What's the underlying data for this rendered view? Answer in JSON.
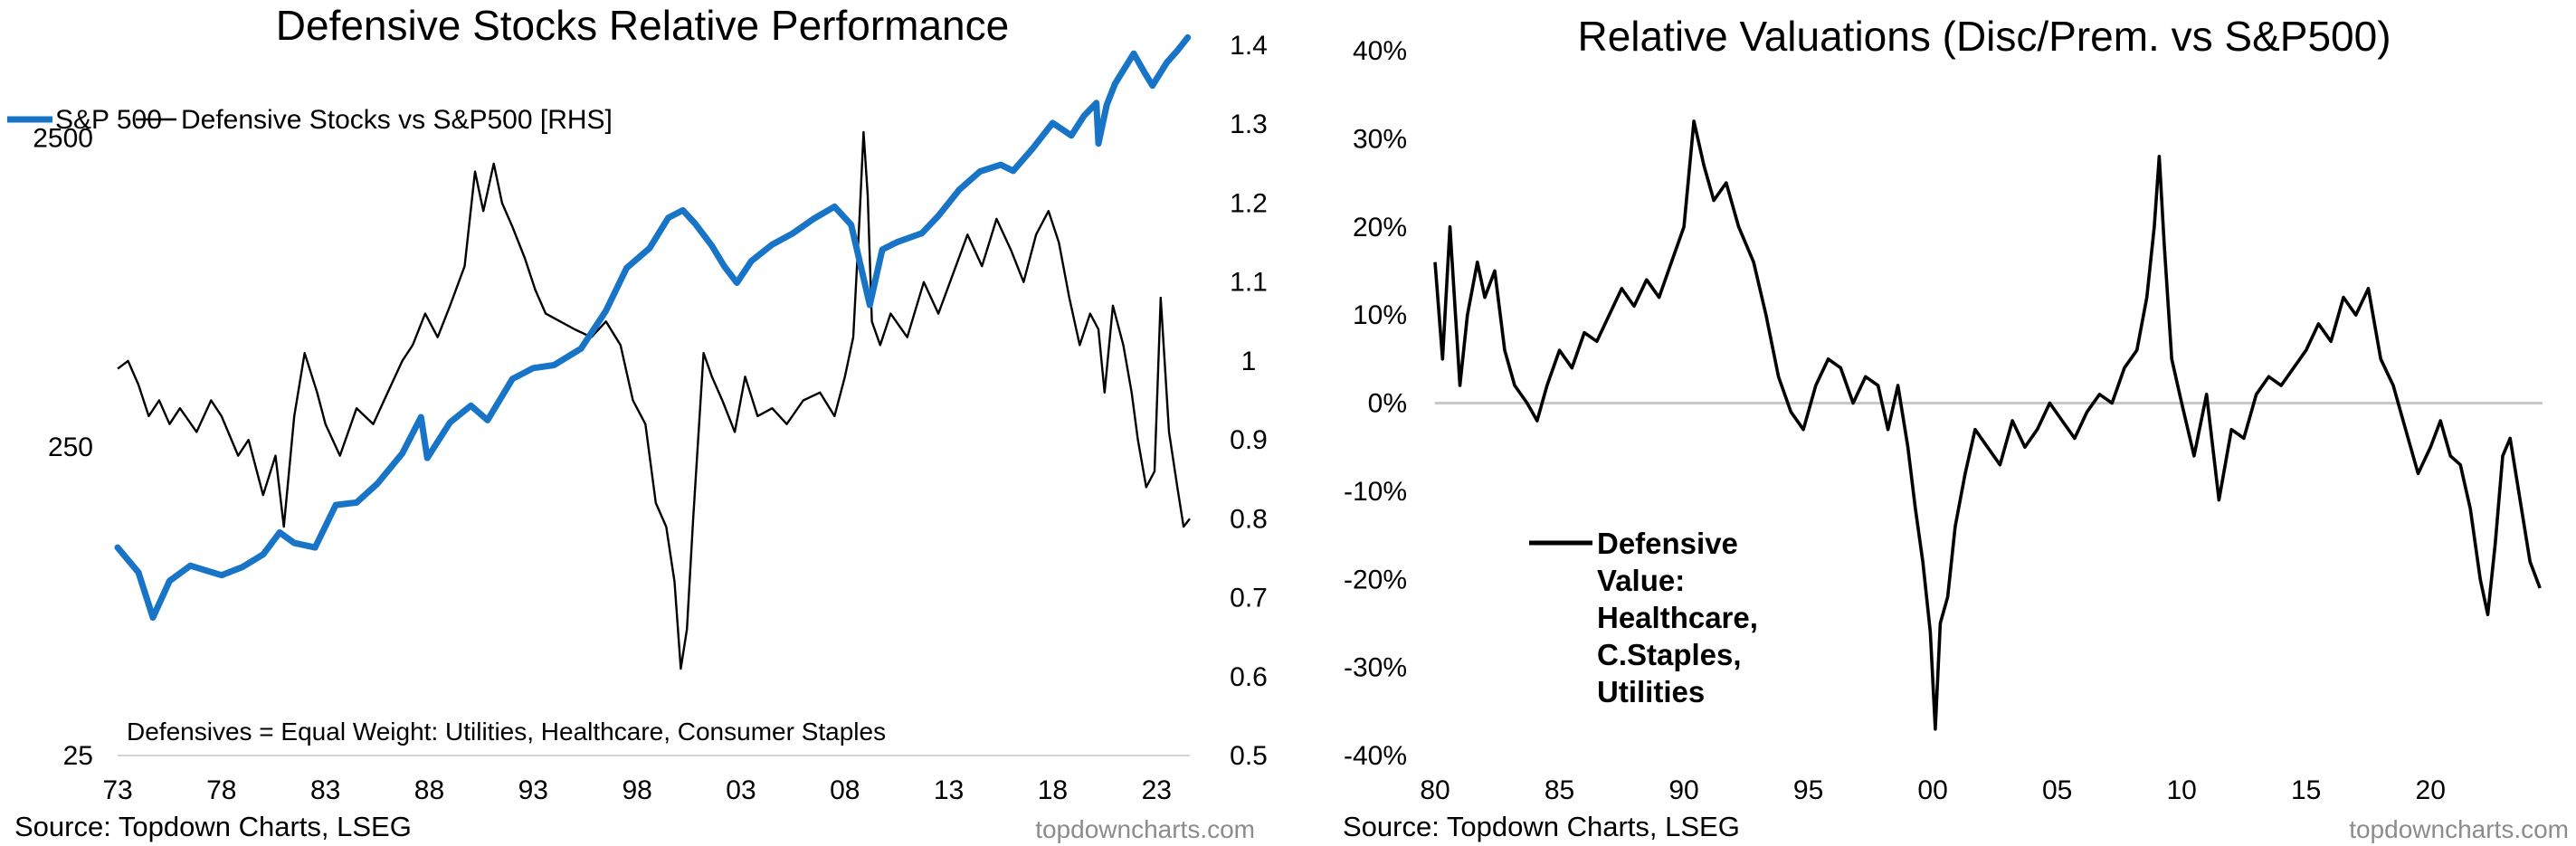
{
  "colors": {
    "sp500": "#1874c6",
    "defensive": "#000000",
    "zero_line": "#c8c8c8",
    "axis": "#d4d4d4",
    "credit": "#8c8c8c"
  },
  "left": {
    "chart_data": {
      "type": "line",
      "title": "Defensive Stocks Relative Performance",
      "legend": {
        "placement": "top-left",
        "entries": [
          "S&P 500",
          "Defensive Stocks vs S&P500 [RHS]"
        ]
      },
      "x_ticks": [
        "73",
        "78",
        "83",
        "88",
        "93",
        "98",
        "03",
        "08",
        "13",
        "18",
        "23"
      ],
      "xlim": [
        1973,
        2024.6
      ],
      "y_left": {
        "scale": "log",
        "ylim": [
          25,
          5000
        ],
        "ticks": [
          "2500",
          "250",
          "25"
        ]
      },
      "y_right": {
        "ylim": [
          0.5,
          1.4
        ],
        "ticks": [
          "1.4",
          "1.3",
          "1.2",
          "1.1",
          "1",
          "0.9",
          "0.8",
          "0.7",
          "0.6",
          "0.5"
        ]
      },
      "series": [
        {
          "name": "S&P 500",
          "axis": "left",
          "x": [
            1973,
            1974,
            1974.7,
            1975.5,
            1976.5,
            1978,
            1979,
            1980,
            1980.8,
            1981.5,
            1982.5,
            1983.5,
            1984.5,
            1985.5,
            1986.7,
            1987.6,
            1987.9,
            1989,
            1990,
            1990.8,
            1992,
            1993,
            1994,
            1995.3,
            1996.5,
            1997.5,
            1998.6,
            1999.5,
            2000.2,
            2000.8,
            2001.6,
            2002.2,
            2002.8,
            2003.5,
            2004.5,
            2005.5,
            2006.5,
            2007.5,
            2008.3,
            2008.9,
            2009.2,
            2009.8,
            2010.5,
            2011.7,
            2012.5,
            2013.5,
            2014.5,
            2015.5,
            2016.1,
            2017,
            2018,
            2018.9,
            2019.5,
            2020.1,
            2020.2,
            2020.6,
            2021,
            2021.9,
            2022.4,
            2022.8,
            2023.5,
            2024,
            2024.5
          ],
          "values": [
            118,
            98,
            70,
            92,
            103,
            96,
            102,
            112,
            132,
            122,
            118,
            162,
            165,
            190,
            238,
            312,
            230,
            300,
            340,
            305,
            415,
            450,
            460,
            520,
            690,
            950,
            1100,
            1380,
            1460,
            1320,
            1120,
            960,
            850,
            1000,
            1130,
            1230,
            1370,
            1500,
            1310,
            880,
            720,
            1090,
            1150,
            1230,
            1400,
            1700,
            1950,
            2050,
            1960,
            2300,
            2800,
            2550,
            2950,
            3250,
            2400,
            3200,
            3750,
            4700,
            4100,
            3700,
            4400,
            4800,
            5300
          ]
        },
        {
          "name": "Defensive Stocks vs S&P500 [RHS]",
          "axis": "right",
          "x": [
            1973,
            1973.5,
            1974,
            1974.5,
            1975,
            1975.5,
            1976,
            1976.8,
            1977.5,
            1978,
            1978.8,
            1979.3,
            1980,
            1980.6,
            1981,
            1981.5,
            1982,
            1982.6,
            1983,
            1983.7,
            1984.5,
            1985.3,
            1986,
            1986.7,
            1987.2,
            1987.8,
            1988.4,
            1989,
            1989.7,
            1990.2,
            1990.6,
            1991.1,
            1991.5,
            1992,
            1992.6,
            1993.1,
            1993.6,
            1994.3,
            1995,
            1995.8,
            1996.5,
            1997.2,
            1997.8,
            1998.4,
            1998.9,
            1999.4,
            1999.8,
            2000.1,
            2000.4,
            2000.7,
            2001.2,
            2001.6,
            2002.1,
            2002.7,
            2003.2,
            2003.8,
            2004.5,
            2005.2,
            2006,
            2006.8,
            2007.5,
            2008,
            2008.4,
            2008.7,
            2008.9,
            2009.1,
            2009.3,
            2009.7,
            2010.2,
            2011,
            2011.8,
            2012.5,
            2013.2,
            2013.9,
            2014.6,
            2015.3,
            2016,
            2016.6,
            2017.2,
            2017.8,
            2018.3,
            2018.8,
            2019.3,
            2019.8,
            2020.2,
            2020.5,
            2020.9,
            2021.4,
            2021.8,
            2022.1,
            2022.5,
            2022.9,
            2023.2,
            2023.6,
            2024,
            2024.3,
            2024.6
          ],
          "values": [
            0.99,
            1.0,
            0.97,
            0.93,
            0.95,
            0.92,
            0.94,
            0.91,
            0.95,
            0.93,
            0.88,
            0.9,
            0.83,
            0.88,
            0.79,
            0.93,
            1.01,
            0.96,
            0.92,
            0.88,
            0.94,
            0.92,
            0.96,
            1.0,
            1.02,
            1.06,
            1.03,
            1.07,
            1.12,
            1.24,
            1.19,
            1.25,
            1.2,
            1.17,
            1.13,
            1.09,
            1.06,
            1.05,
            1.04,
            1.03,
            1.05,
            1.02,
            0.95,
            0.92,
            0.82,
            0.79,
            0.72,
            0.61,
            0.66,
            0.8,
            1.01,
            0.98,
            0.95,
            0.91,
            0.98,
            0.93,
            0.94,
            0.92,
            0.95,
            0.96,
            0.93,
            0.98,
            1.03,
            1.18,
            1.29,
            1.21,
            1.05,
            1.02,
            1.06,
            1.03,
            1.1,
            1.06,
            1.11,
            1.16,
            1.12,
            1.18,
            1.14,
            1.1,
            1.16,
            1.19,
            1.15,
            1.08,
            1.02,
            1.06,
            1.04,
            0.96,
            1.07,
            1.02,
            0.96,
            0.9,
            0.84,
            0.86,
            1.08,
            0.91,
            0.84,
            0.79,
            0.8
          ]
        }
      ],
      "annotation": "Defensives = Equal Weight: Utilities, Healthcare, Consumer Staples"
    },
    "source": "Source: Topdown Charts, LSEG",
    "credit": "topdowncharts.com"
  },
  "right": {
    "chart_data": {
      "type": "line",
      "title": "Relative Valuations (Disc/Prem. vs S&P500)",
      "x_ticks": [
        "80",
        "85",
        "90",
        "95",
        "00",
        "05",
        "10",
        "15",
        "20"
      ],
      "xlim": [
        1980,
        2024.5
      ],
      "ylim": [
        -0.4,
        0.4
      ],
      "y_ticks": [
        "40%",
        "30%",
        "20%",
        "10%",
        "0%",
        "-10%",
        "-20%",
        "-30%",
        "-40%"
      ],
      "reference_line": 0,
      "legend_lines": [
        "Defensive",
        "Value:",
        "Healthcare,",
        "C.Staples,",
        "Utilities"
      ],
      "series": [
        {
          "name": "Defensive Value: Healthcare, C.Staples, Utilities",
          "x": [
            1980,
            1980.3,
            1980.6,
            1981,
            1981.3,
            1981.7,
            1982,
            1982.4,
            1982.8,
            1983.2,
            1983.7,
            1984.1,
            1984.5,
            1985,
            1985.5,
            1986,
            1986.5,
            1987,
            1987.5,
            1988,
            1988.5,
            1989,
            1989.5,
            1990,
            1990.4,
            1990.8,
            1991.2,
            1991.7,
            1992.2,
            1992.8,
            1993.3,
            1993.8,
            1994.3,
            1994.8,
            1995.3,
            1995.8,
            1996.3,
            1996.8,
            1997.3,
            1997.8,
            1998.2,
            1998.6,
            1999,
            1999.3,
            1999.6,
            1999.9,
            2000.1,
            2000.3,
            2000.6,
            2000.9,
            2001.3,
            2001.7,
            2002.2,
            2002.7,
            2003.2,
            2003.7,
            2004.2,
            2004.7,
            2005.2,
            2005.7,
            2006.2,
            2006.7,
            2007.2,
            2007.7,
            2008.2,
            2008.6,
            2008.9,
            2009.1,
            2009.3,
            2009.6,
            2010,
            2010.5,
            2011,
            2011.5,
            2012,
            2012.5,
            2013,
            2013.5,
            2014,
            2014.5,
            2015,
            2015.5,
            2016,
            2016.5,
            2017,
            2017.5,
            2018,
            2018.5,
            2019,
            2019.5,
            2020,
            2020.4,
            2020.8,
            2021.2,
            2021.6,
            2022,
            2022.3,
            2022.6,
            2022.9,
            2023.2,
            2023.6,
            2024,
            2024.4
          ],
          "values": [
            0.16,
            0.05,
            0.2,
            0.02,
            0.1,
            0.16,
            0.12,
            0.15,
            0.06,
            0.02,
            0.0,
            -0.02,
            0.02,
            0.06,
            0.04,
            0.08,
            0.07,
            0.1,
            0.13,
            0.11,
            0.14,
            0.12,
            0.16,
            0.2,
            0.32,
            0.27,
            0.23,
            0.25,
            0.2,
            0.16,
            0.1,
            0.03,
            -0.01,
            -0.03,
            0.02,
            0.05,
            0.04,
            0.0,
            0.03,
            0.02,
            -0.03,
            0.02,
            -0.05,
            -0.12,
            -0.18,
            -0.26,
            -0.37,
            -0.25,
            -0.22,
            -0.14,
            -0.08,
            -0.03,
            -0.05,
            -0.07,
            -0.02,
            -0.05,
            -0.03,
            0.0,
            -0.02,
            -0.04,
            -0.01,
            0.01,
            0.0,
            0.04,
            0.06,
            0.12,
            0.2,
            0.28,
            0.18,
            0.05,
            0.0,
            -0.06,
            0.01,
            -0.11,
            -0.03,
            -0.04,
            0.01,
            0.03,
            0.02,
            0.04,
            0.06,
            0.09,
            0.07,
            0.12,
            0.1,
            0.13,
            0.05,
            0.02,
            -0.03,
            -0.08,
            -0.05,
            -0.02,
            -0.06,
            -0.07,
            -0.12,
            -0.2,
            -0.24,
            -0.16,
            -0.06,
            -0.04,
            -0.11,
            -0.18,
            -0.21
          ]
        }
      ]
    },
    "source": "Source: Topdown Charts, LSEG",
    "credit": "topdowncharts.com"
  }
}
